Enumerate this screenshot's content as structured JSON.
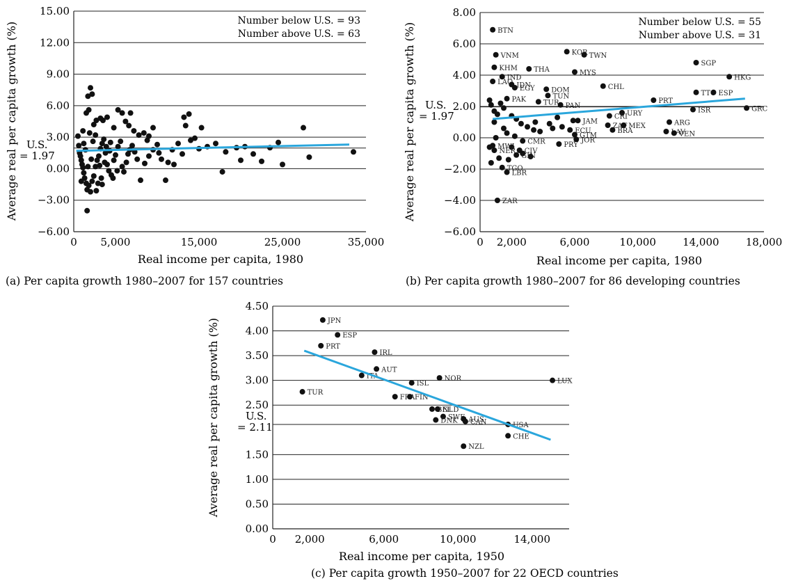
{
  "chart_data": [
    {
      "id": "a",
      "type": "scatter",
      "caption": "(a) Per capita growth 1980–2007 for 157 countries",
      "xlabel": "Real income per capita, 1980",
      "ylabel": "Average real per capita growth (%)",
      "xlim": [
        0,
        35000
      ],
      "ylim": [
        -6,
        15
      ],
      "xticks": [
        0,
        5000,
        15000,
        25000,
        35000
      ],
      "xtick_labels": [
        "0",
        "5,000",
        "15,000",
        "25,000",
        "35,000"
      ],
      "yticks": [
        15,
        12,
        9,
        6,
        3,
        0,
        -3,
        -6
      ],
      "ytick_labels": [
        "15.00",
        "12.00",
        "9.00",
        "6.00",
        "3.00",
        "0.00",
        "−3.00",
        "−6.00"
      ],
      "grid": "horizontal",
      "us_value": 1.97,
      "us_label_line1": "U.S.",
      "us_label_line2": "= 1.97",
      "annotations": [
        "Number below U.S. = 93",
        "Number above U.S. = 63"
      ],
      "fit_line": {
        "x": [
          300,
          33000
        ],
        "y": [
          1.7,
          2.3
        ]
      },
      "points": [
        [
          2000,
          7.7
        ],
        [
          2200,
          7.1
        ],
        [
          1700,
          6.9
        ],
        [
          1500,
          5.3
        ],
        [
          1800,
          5.6
        ],
        [
          2400,
          4.2
        ],
        [
          2700,
          4.6
        ],
        [
          3200,
          4.8
        ],
        [
          3500,
          4.6
        ],
        [
          4000,
          4.9
        ],
        [
          4800,
          3.9
        ],
        [
          5300,
          5.6
        ],
        [
          5800,
          5.3
        ],
        [
          6200,
          4.5
        ],
        [
          6800,
          5.3
        ],
        [
          6600,
          4.1
        ],
        [
          7200,
          3.6
        ],
        [
          7800,
          3.2
        ],
        [
          8400,
          3.4
        ],
        [
          9000,
          3.1
        ],
        [
          9500,
          3.9
        ],
        [
          13200,
          4.9
        ],
        [
          13800,
          5.2
        ],
        [
          13400,
          4.1
        ],
        [
          15300,
          3.9
        ],
        [
          14500,
          2.9
        ],
        [
          27500,
          3.9
        ],
        [
          24500,
          2.5
        ],
        [
          33500,
          1.6
        ],
        [
          28200,
          1.1
        ],
        [
          500,
          3.1
        ],
        [
          600,
          2.2
        ],
        [
          700,
          1.5
        ],
        [
          800,
          1.2
        ],
        [
          900,
          0.8
        ],
        [
          1000,
          0.4
        ],
        [
          1100,
          0.1
        ],
        [
          1200,
          -0.4
        ],
        [
          1300,
          -0.9
        ],
        [
          1500,
          -1.4
        ],
        [
          1600,
          -2.0
        ],
        [
          1800,
          -1.6
        ],
        [
          2000,
          -2.2
        ],
        [
          2200,
          -1.2
        ],
        [
          2400,
          -0.7
        ],
        [
          2600,
          0.2
        ],
        [
          2800,
          0.8
        ],
        [
          3000,
          1.2
        ],
        [
          3200,
          1.9
        ],
        [
          3400,
          2.4
        ],
        [
          3600,
          2.8
        ],
        [
          3800,
          1.5
        ],
        [
          4000,
          0.4
        ],
        [
          4200,
          -0.2
        ],
        [
          4500,
          -0.6
        ],
        [
          4800,
          0.8
        ],
        [
          5000,
          1.3
        ],
        [
          5300,
          2.1
        ],
        [
          5600,
          2.6
        ],
        [
          5800,
          0.2
        ],
        [
          6000,
          -0.3
        ],
        [
          6300,
          0.6
        ],
        [
          6500,
          1.4
        ],
        [
          7000,
          2.2
        ],
        [
          7300,
          1.6
        ],
        [
          7600,
          0.9
        ],
        [
          8000,
          -1.1
        ],
        [
          8500,
          0.5
        ],
        [
          9000,
          1.2
        ],
        [
          9500,
          1.8
        ],
        [
          10000,
          2.3
        ],
        [
          10500,
          0.9
        ],
        [
          11000,
          -1.1
        ],
        [
          11300,
          0.6
        ],
        [
          11800,
          1.8
        ],
        [
          12000,
          0.4
        ],
        [
          12500,
          2.4
        ],
        [
          13000,
          1.4
        ],
        [
          14000,
          2.7
        ],
        [
          15000,
          1.9
        ],
        [
          16000,
          2.1
        ],
        [
          17000,
          2.4
        ],
        [
          17800,
          -0.3
        ],
        [
          18200,
          1.6
        ],
        [
          19500,
          2.0
        ],
        [
          20000,
          0.8
        ],
        [
          20500,
          2.1
        ],
        [
          21500,
          1.4
        ],
        [
          22500,
          0.7
        ],
        [
          23500,
          2.0
        ],
        [
          25000,
          0.4
        ],
        [
          1600,
          -4.0
        ],
        [
          1400,
          1.8
        ],
        [
          1900,
          3.4
        ],
        [
          2300,
          2.6
        ],
        [
          2900,
          -1.4
        ],
        [
          3300,
          -0.9
        ],
        [
          3700,
          0.6
        ],
        [
          4300,
          1.7
        ],
        [
          4700,
          -0.9
        ],
        [
          5200,
          -0.2
        ],
        [
          6700,
          1.8
        ],
        [
          8800,
          2.7
        ],
        [
          10200,
          1.5
        ],
        [
          2100,
          0.9
        ],
        [
          2600,
          3.2
        ],
        [
          3100,
          0.3
        ],
        [
          3900,
          2.1
        ],
        [
          4400,
          2.5
        ],
        [
          1200,
          2.4
        ],
        [
          1700,
          0.2
        ],
        [
          900,
          -1.2
        ],
        [
          2700,
          -2.1
        ],
        [
          3400,
          -1.5
        ],
        [
          1100,
          3.6
        ]
      ]
    },
    {
      "id": "b",
      "type": "scatter",
      "caption": "(b) Per capita growth 1980–2007 for 86 developing countries",
      "xlabel": "Real income per capita, 1980",
      "ylabel": "Average real per capita growth (%)",
      "xlim": [
        0,
        18000
      ],
      "ylim": [
        -6,
        8
      ],
      "xticks": [
        0,
        2000,
        6000,
        10000,
        14000,
        18000
      ],
      "xtick_labels": [
        "0",
        "2,000",
        "6,000",
        "10,000",
        "14,000",
        "18,000"
      ],
      "yticks": [
        8,
        6,
        4,
        2,
        0,
        -2,
        -4,
        -6
      ],
      "ytick_labels": [
        "8.00",
        "6.00",
        "4.00",
        "2.00",
        "0.00",
        "−2.00",
        "−4.00",
        "−6.00"
      ],
      "grid": "horizontal",
      "us_value": 1.97,
      "us_label_line1": "U.S.",
      "us_label_line2": "= 1.97",
      "annotations": [
        "Number below U.S. = 55",
        "Number above U.S. = 31"
      ],
      "fit_line": {
        "x": [
          800,
          16800
        ],
        "y": [
          1.2,
          2.5
        ]
      },
      "labeled_points": [
        {
          "label": "BTN",
          "x": 800,
          "y": 6.9
        },
        {
          "label": "KOR",
          "x": 5500,
          "y": 5.5
        },
        {
          "label": "TWN",
          "x": 6600,
          "y": 5.3
        },
        {
          "label": "VNM",
          "x": 1000,
          "y": 5.3
        },
        {
          "label": "KHM",
          "x": 900,
          "y": 4.5
        },
        {
          "label": "THA",
          "x": 3100,
          "y": 4.4
        },
        {
          "label": "MYS",
          "x": 6000,
          "y": 4.2
        },
        {
          "label": "SGP",
          "x": 13700,
          "y": 4.8
        },
        {
          "label": "HKG",
          "x": 15800,
          "y": 3.9
        },
        {
          "label": "IND",
          "x": 1400,
          "y": 3.9
        },
        {
          "label": "LAO",
          "x": 800,
          "y": 3.6
        },
        {
          "label": "IDN",
          "x": 2000,
          "y": 3.4
        },
        {
          "label": "EGY",
          "x": 2200,
          "y": 3.2
        },
        {
          "label": "DOM",
          "x": 4200,
          "y": 3.1
        },
        {
          "label": "CHL",
          "x": 7800,
          "y": 3.3
        },
        {
          "label": "TTO",
          "x": 13700,
          "y": 2.9
        },
        {
          "label": "ESP",
          "x": 14800,
          "y": 2.9
        },
        {
          "label": "TUN",
          "x": 4300,
          "y": 2.7
        },
        {
          "label": "PAK",
          "x": 1700,
          "y": 2.5
        },
        {
          "label": "TUR",
          "x": 3700,
          "y": 2.3
        },
        {
          "label": "PAN",
          "x": 5100,
          "y": 2.1
        },
        {
          "label": "PRT",
          "x": 11000,
          "y": 2.4
        },
        {
          "label": "ISR",
          "x": 13500,
          "y": 1.8
        },
        {
          "label": "GRC",
          "x": 16900,
          "y": 1.9
        },
        {
          "label": "URY",
          "x": 9000,
          "y": 1.6
        },
        {
          "label": "CRI",
          "x": 8200,
          "y": 1.4
        },
        {
          "label": "JAM",
          "x": 6200,
          "y": 1.1
        },
        {
          "label": "ARG",
          "x": 12000,
          "y": 1.0
        },
        {
          "label": "ZAF",
          "x": 8100,
          "y": 0.8
        },
        {
          "label": "MEX",
          "x": 9100,
          "y": 0.8
        },
        {
          "label": "BRA",
          "x": 8400,
          "y": 0.5
        },
        {
          "label": "LAV",
          "x": 11800,
          "y": 0.4
        },
        {
          "label": "VEN",
          "x": 12300,
          "y": 0.3
        },
        {
          "label": "ECU",
          "x": 5700,
          "y": 0.5
        },
        {
          "label": "GTM",
          "x": 6000,
          "y": 0.2
        },
        {
          "label": "JOR",
          "x": 6100,
          "y": -0.1
        },
        {
          "label": "PRY",
          "x": 5000,
          "y": -0.4
        },
        {
          "label": "CMR",
          "x": 2700,
          "y": -0.2
        },
        {
          "label": "CIV",
          "x": 2500,
          "y": -0.8
        },
        {
          "label": "GIN",
          "x": 2300,
          "y": -1.1
        },
        {
          "label": "NER",
          "x": 900,
          "y": -0.8
        },
        {
          "label": "MWI",
          "x": 800,
          "y": -0.5
        },
        {
          "label": "TGO",
          "x": 1400,
          "y": -1.9
        },
        {
          "label": "LBR",
          "x": 1700,
          "y": -2.2
        },
        {
          "label": "ZAR",
          "x": 1100,
          "y": -4.0
        }
      ],
      "unlabeled_points": [
        [
          600,
          2.4
        ],
        [
          700,
          2.1
        ],
        [
          900,
          1.7
        ],
        [
          1100,
          1.5
        ],
        [
          1300,
          2.2
        ],
        [
          1500,
          1.9
        ],
        [
          2000,
          1.4
        ],
        [
          2300,
          1.2
        ],
        [
          2600,
          0.9
        ],
        [
          3000,
          0.7
        ],
        [
          3400,
          0.5
        ],
        [
          3800,
          0.4
        ],
        [
          4400,
          0.9
        ],
        [
          4900,
          1.3
        ],
        [
          5200,
          0.7
        ],
        [
          5900,
          1.1
        ],
        [
          2200,
          0.1
        ],
        [
          1700,
          0.3
        ],
        [
          1000,
          0.0
        ],
        [
          700,
          -1.6
        ],
        [
          1200,
          -1.3
        ],
        [
          3200,
          -1.2
        ],
        [
          2000,
          -0.6
        ],
        [
          1500,
          0.6
        ],
        [
          4600,
          0.6
        ],
        [
          3500,
          1.0
        ],
        [
          900,
          1.0
        ],
        [
          1800,
          -1.4
        ],
        [
          2700,
          -1.0
        ],
        [
          600,
          -0.6
        ]
      ]
    },
    {
      "id": "c",
      "type": "scatter",
      "caption": "(c) Per capita growth 1950–2007 for 22 OECD countries",
      "xlabel": "Real income per capita, 1950",
      "ylabel": "Average real per capita growth (%)",
      "xlim": [
        0,
        16000
      ],
      "ylim": [
        0,
        4.5
      ],
      "xticks": [
        0,
        2000,
        6000,
        10000,
        14000
      ],
      "xtick_labels": [
        "0",
        "2,000",
        "6,000",
        "10,000",
        "14,000"
      ],
      "yticks": [
        4.5,
        4.0,
        3.5,
        3.0,
        2.5,
        1.5,
        1.0,
        0.5,
        0.0
      ],
      "ytick_labels": [
        "4.50",
        "4.00",
        "3.50",
        "3.00",
        "2.50",
        "1.50",
        "1.00",
        "0.50",
        "0.00"
      ],
      "grid": "horizontal",
      "us_value": 2.11,
      "us_label_line1": "U.S.",
      "us_label_line2": "= 2.11",
      "fit_line": {
        "x": [
          1700,
          15000
        ],
        "y": [
          3.6,
          1.8
        ]
      },
      "labeled_points": [
        {
          "label": "JPN",
          "x": 2700,
          "y": 4.22
        },
        {
          "label": "ESP",
          "x": 3500,
          "y": 3.92
        },
        {
          "label": "PRT",
          "x": 2600,
          "y": 3.7
        },
        {
          "label": "IRL",
          "x": 5500,
          "y": 3.57
        },
        {
          "label": "AUT",
          "x": 5600,
          "y": 3.23
        },
        {
          "label": "ITA",
          "x": 4800,
          "y": 3.1
        },
        {
          "label": "ISL",
          "x": 7500,
          "y": 2.95
        },
        {
          "label": "NOR",
          "x": 9000,
          "y": 3.05
        },
        {
          "label": "LUX",
          "x": 15100,
          "y": 3.0
        },
        {
          "label": "TUR",
          "x": 1600,
          "y": 2.77
        },
        {
          "label": "FRA",
          "x": 6600,
          "y": 2.67
        },
        {
          "label": "FIN",
          "x": 7400,
          "y": 2.67
        },
        {
          "label": "BEL",
          "x": 8600,
          "y": 2.42
        },
        {
          "label": "NLD",
          "x": 8900,
          "y": 2.42
        },
        {
          "label": "SWE",
          "x": 9200,
          "y": 2.27
        },
        {
          "label": "DNK",
          "x": 8800,
          "y": 2.2
        },
        {
          "label": "AUS",
          "x": 10300,
          "y": 2.22
        },
        {
          "label": "CAN",
          "x": 10400,
          "y": 2.17
        },
        {
          "label": "USA",
          "x": 12700,
          "y": 2.11
        },
        {
          "label": "CHE",
          "x": 12700,
          "y": 1.88
        },
        {
          "label": "NZL",
          "x": 10300,
          "y": 1.67
        }
      ]
    }
  ]
}
